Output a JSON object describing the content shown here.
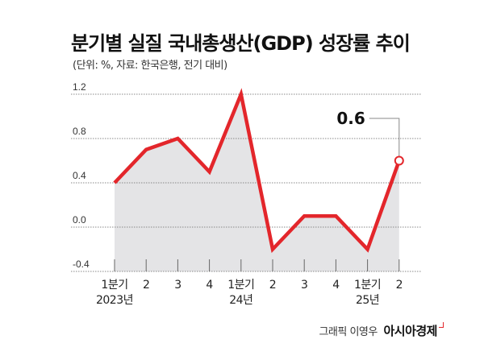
{
  "chart_data": {
    "type": "area",
    "title": "분기별 실질 국내총생산(GDP) 성장률 추이",
    "subtitle": "(단위: %, 자료: 한국은행, 전기 대비)",
    "categories": [
      "2023Q1",
      "2023Q2",
      "2023Q3",
      "2023Q4",
      "2024Q1",
      "2024Q2",
      "2024Q3",
      "2024Q4",
      "2025Q1",
      "2025Q2"
    ],
    "x_tick_labels": [
      {
        "top": "1분기",
        "bottom": "2023년"
      },
      {
        "top": "2",
        "bottom": ""
      },
      {
        "top": "3",
        "bottom": ""
      },
      {
        "top": "4",
        "bottom": ""
      },
      {
        "top": "1분기",
        "bottom": "24년"
      },
      {
        "top": "2",
        "bottom": ""
      },
      {
        "top": "3",
        "bottom": ""
      },
      {
        "top": "4",
        "bottom": ""
      },
      {
        "top": "1분기",
        "bottom": "25년"
      },
      {
        "top": "2",
        "bottom": ""
      }
    ],
    "values": [
      0.4,
      0.7,
      0.8,
      0.5,
      1.2,
      -0.2,
      0.1,
      0.1,
      -0.2,
      0.6
    ],
    "ylim": [
      -0.4,
      1.2
    ],
    "y_ticks": [
      "1.2",
      "0.8",
      "0.4",
      "0.0",
      "-0.4"
    ],
    "y_tick_values": [
      1.2,
      0.8,
      0.4,
      0.0,
      -0.4
    ],
    "grid": true,
    "annotation": {
      "label": "0.6",
      "point_index": 9
    },
    "colors": {
      "line": "#e3262b",
      "fill": "#e4e4e6",
      "grid": "#888888"
    }
  },
  "credit": {
    "author": "그래픽 이영우",
    "brand": "아시아경제"
  }
}
